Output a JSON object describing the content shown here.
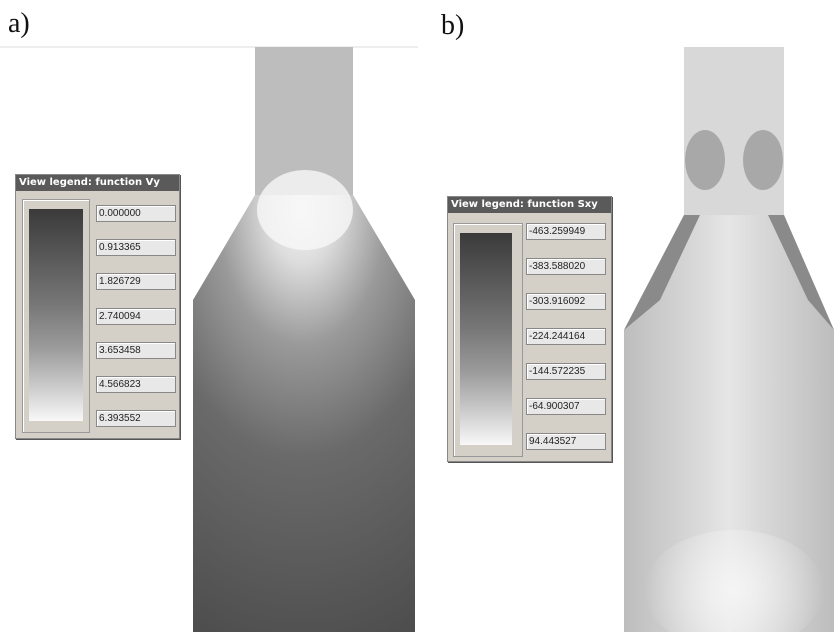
{
  "panels": [
    {
      "label": "a)",
      "legend": {
        "title": "View legend: function Vy",
        "values": [
          "0.000000",
          "0.913365",
          "1.826729",
          "2.740094",
          "3.653458",
          "4.566823",
          "6.393552"
        ]
      }
    },
    {
      "label": "b)",
      "legend": {
        "title": "View legend: function Sxy",
        "values": [
          "-463.259949",
          "-383.588020",
          "-303.916092",
          "-224.244164",
          "-144.572235",
          "-64.900307",
          "94.443527"
        ]
      }
    }
  ]
}
